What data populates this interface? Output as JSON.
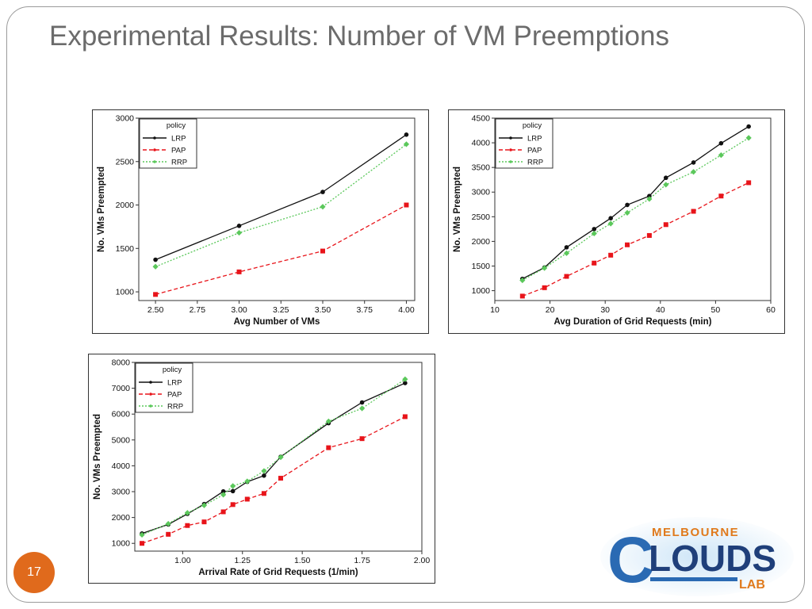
{
  "slide": {
    "title": "Experimental Results: Number of VM Preemptions",
    "page_number": "17"
  },
  "logo": {
    "top_text": "MELBOURNE",
    "main_text": "LOUDS",
    "initial": "C",
    "sub_text": "LAB",
    "colors": {
      "blue": "#2a6ab3",
      "orange": "#e07a1c",
      "navy": "#1f3f7a"
    }
  },
  "series_styles": {
    "LRP": {
      "color": "#111111",
      "dash": "",
      "marker": "circle"
    },
    "PAP": {
      "color": "#e8141a",
      "dash": "5,3",
      "marker": "square"
    },
    "RRP": {
      "color": "#5bc85b",
      "dash": "2,2",
      "marker": "diamond"
    }
  },
  "chart_data": [
    {
      "type": "line",
      "xlabel": "Avg Number of VMs",
      "ylabel": "No. VMs Preempted",
      "legend_title": "policy",
      "legend_position": "top-left",
      "grid": false,
      "xlim": [
        2.4,
        4.05
      ],
      "ylim": [
        900,
        3000
      ],
      "xticks": [
        2.5,
        2.75,
        3.0,
        3.25,
        3.5,
        3.75,
        4.0
      ],
      "xtick_labels": [
        "2.50",
        "2.75",
        "3.00",
        "3.25",
        "3.50",
        "3.75",
        "4.00"
      ],
      "yticks": [
        1000,
        1500,
        2000,
        2500,
        3000
      ],
      "ytick_labels": [
        "1000",
        "1500",
        "2000",
        "2500",
        "3000"
      ],
      "series": [
        {
          "name": "LRP",
          "x": [
            2.5,
            3.0,
            3.5,
            4.0
          ],
          "y": [
            1370,
            1760,
            2150,
            2810
          ]
        },
        {
          "name": "PAP",
          "x": [
            2.5,
            3.0,
            3.5,
            4.0
          ],
          "y": [
            970,
            1230,
            1470,
            2000
          ]
        },
        {
          "name": "RRP",
          "x": [
            2.5,
            3.0,
            3.5,
            4.0
          ],
          "y": [
            1290,
            1680,
            1980,
            2700
          ]
        }
      ]
    },
    {
      "type": "line",
      "xlabel": "Avg Duration of Grid Requests (min)",
      "ylabel": "No. VMs Preempted",
      "legend_title": "policy",
      "legend_position": "top-left",
      "grid": false,
      "xlim": [
        10,
        60
      ],
      "ylim": [
        800,
        4500
      ],
      "xticks": [
        10,
        20,
        30,
        40,
        50,
        60
      ],
      "xtick_labels": [
        "10",
        "20",
        "30",
        "40",
        "50",
        "60"
      ],
      "yticks": [
        1000,
        1500,
        2000,
        2500,
        3000,
        3500,
        4000,
        4500
      ],
      "ytick_labels": [
        "1000",
        "1500",
        "2000",
        "2500",
        "3000",
        "3500",
        "4000",
        "4500"
      ],
      "series": [
        {
          "name": "LRP",
          "x": [
            15,
            19,
            23,
            28,
            31,
            34,
            38,
            41,
            46,
            51,
            56
          ],
          "y": [
            1240,
            1470,
            1880,
            2250,
            2470,
            2740,
            2920,
            3290,
            3600,
            3990,
            4330
          ]
        },
        {
          "name": "PAP",
          "x": [
            15,
            19,
            23,
            28,
            31,
            34,
            38,
            41,
            46,
            51,
            56
          ],
          "y": [
            890,
            1060,
            1290,
            1560,
            1720,
            1930,
            2120,
            2340,
            2610,
            2920,
            3190
          ]
        },
        {
          "name": "RRP",
          "x": [
            15,
            19,
            23,
            28,
            31,
            34,
            38,
            41,
            46,
            51,
            56
          ],
          "y": [
            1210,
            1460,
            1760,
            2160,
            2360,
            2580,
            2860,
            3150,
            3410,
            3750,
            4100
          ]
        }
      ]
    },
    {
      "type": "line",
      "xlabel": "Arrival Rate of Grid Requests (1/min)",
      "ylabel": "No. VMs Preempted",
      "legend_title": "policy",
      "legend_position": "top-left",
      "grid": false,
      "xlim": [
        0.8,
        2.0
      ],
      "ylim": [
        700,
        8000
      ],
      "xticks": [
        1.0,
        1.25,
        1.5,
        1.75,
        2.0
      ],
      "xtick_labels": [
        "1.00",
        "1.25",
        "1.50",
        "1.75",
        "2.00"
      ],
      "yticks": [
        1000,
        2000,
        3000,
        4000,
        5000,
        6000,
        7000,
        8000
      ],
      "ytick_labels": [
        "1000",
        "2000",
        "3000",
        "4000",
        "5000",
        "6000",
        "7000",
        "8000"
      ],
      "series": [
        {
          "name": "LRP",
          "x": [
            0.83,
            0.94,
            1.02,
            1.09,
            1.17,
            1.21,
            1.27,
            1.34,
            1.41,
            1.61,
            1.75,
            1.93
          ],
          "y": [
            1380,
            1730,
            2140,
            2520,
            3010,
            3020,
            3380,
            3620,
            4350,
            5650,
            6450,
            7200
          ]
        },
        {
          "name": "PAP",
          "x": [
            0.83,
            0.94,
            1.02,
            1.09,
            1.17,
            1.21,
            1.27,
            1.34,
            1.41,
            1.61,
            1.75,
            1.93
          ],
          "y": [
            1000,
            1350,
            1690,
            1830,
            2220,
            2500,
            2710,
            2930,
            3520,
            4700,
            5050,
            5900
          ]
        },
        {
          "name": "RRP",
          "x": [
            0.83,
            0.94,
            1.02,
            1.09,
            1.17,
            1.21,
            1.27,
            1.34,
            1.41,
            1.61,
            1.75,
            1.93
          ],
          "y": [
            1330,
            1760,
            2180,
            2470,
            2880,
            3220,
            3400,
            3800,
            4330,
            5720,
            6220,
            7350
          ]
        }
      ]
    }
  ]
}
